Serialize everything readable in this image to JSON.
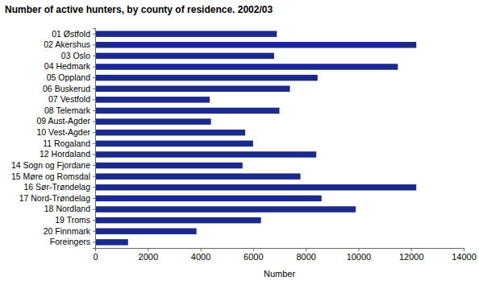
{
  "chart_data": {
    "type": "bar",
    "orientation": "horizontal",
    "title": "Number of active hunters, by county of residence. 2002/03",
    "xlabel": "Number",
    "categories": [
      "01 Østfold",
      "02 Akershus",
      "03 Oslo",
      "04 Hedmark",
      "05 Oppland",
      "06 Buskerud",
      "07 Vestfold",
      "08 Telemark",
      "09 Aust-Agder",
      "10 Vest-Agder",
      "11 Rogaland",
      "12 Hordaland",
      "14 Sogn og Fjordane",
      "15 Møre og Romsdal",
      "16 Sør-Trøndelag",
      "17 Nord-Trøndelag",
      "18 Nordland",
      "19 Troms",
      "20 Finnmark",
      "Foreingers"
    ],
    "values": [
      6900,
      12200,
      6800,
      11500,
      8450,
      7400,
      4350,
      7000,
      4400,
      5700,
      6000,
      8400,
      5600,
      7800,
      12200,
      8600,
      9900,
      6300,
      3850,
      1250
    ],
    "color": "#1b2a8a",
    "xlim": [
      0,
      14000
    ],
    "xticks": [
      0,
      2000,
      4000,
      6000,
      8000,
      10000,
      12000,
      14000
    ],
    "grid": false
  }
}
